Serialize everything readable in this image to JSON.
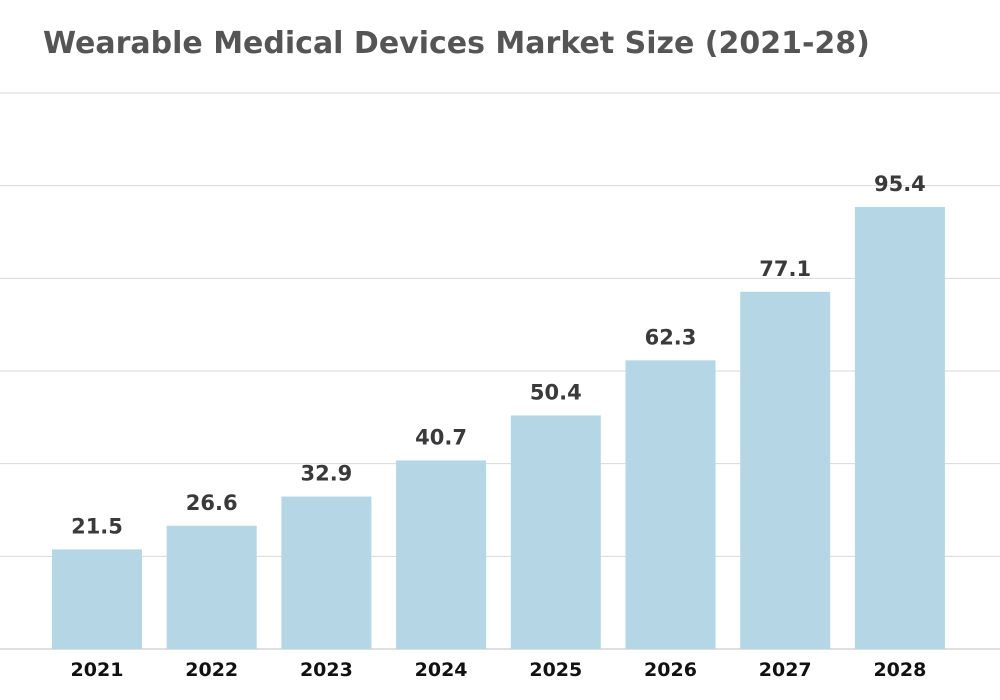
{
  "chart_data": {
    "type": "bar",
    "title": "Wearable Medical Devices Market Size (2021-28)",
    "categories": [
      "2021",
      "2022",
      "2023",
      "2024",
      "2025",
      "2026",
      "2027",
      "2028"
    ],
    "values": [
      21.5,
      26.6,
      32.9,
      40.7,
      50.4,
      62.3,
      77.1,
      95.4
    ],
    "labels": [
      "21.5",
      "26.6",
      "32.9",
      "40.7",
      "50.4",
      "62.3",
      "77.1",
      "95.4"
    ],
    "xlabel": "",
    "ylabel": "",
    "ylim": [
      0,
      120
    ],
    "gridlines": [
      20,
      40,
      60,
      80,
      100,
      120
    ],
    "grid": true,
    "bar_color": "#b5d6e4",
    "grid_color": "#d9d9d9"
  }
}
